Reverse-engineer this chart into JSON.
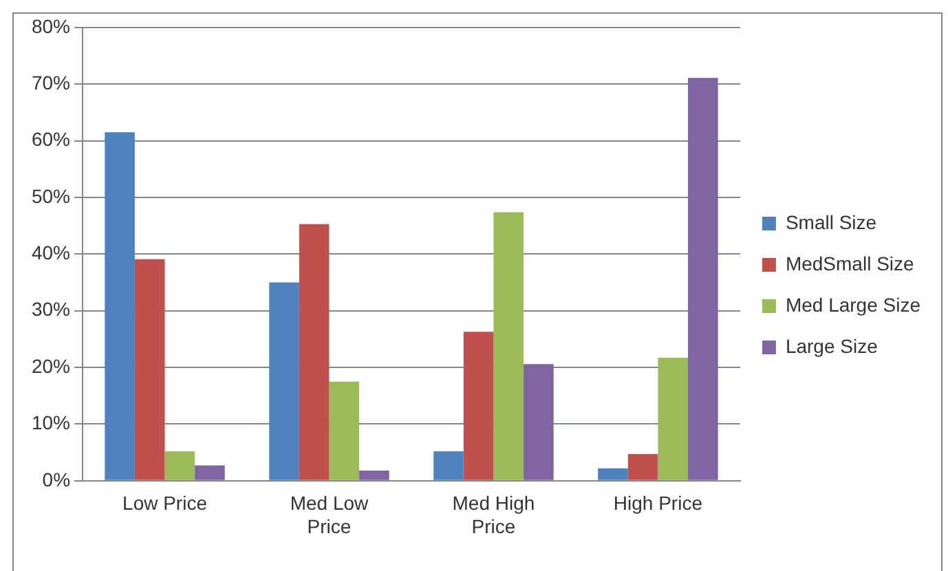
{
  "chart_data": {
    "type": "bar",
    "categories": [
      "Low Price",
      "Med Low Price",
      "Med High Price",
      "High Price"
    ],
    "series": [
      {
        "name": "Small Size",
        "color": "#4f81bd",
        "values": [
          61.5,
          35.0,
          5.2,
          2.2
        ]
      },
      {
        "name": "MedSmall Size",
        "color": "#c0504d",
        "values": [
          39.1,
          45.3,
          26.3,
          4.7
        ]
      },
      {
        "name": "Med Large Size",
        "color": "#9bbb59",
        "values": [
          5.2,
          17.5,
          47.4,
          21.7
        ]
      },
      {
        "name": "Large Size",
        "color": "#8064a2",
        "values": [
          2.7,
          1.8,
          20.6,
          71.1
        ]
      }
    ],
    "ylim": [
      0,
      80
    ],
    "yticks": [
      {
        "value": 0,
        "label": "0%"
      },
      {
        "value": 10,
        "label": "10%"
      },
      {
        "value": 20,
        "label": "20%"
      },
      {
        "value": 30,
        "label": "30%"
      },
      {
        "value": 40,
        "label": "40%"
      },
      {
        "value": 50,
        "label": "50%"
      },
      {
        "value": 60,
        "label": "60%"
      },
      {
        "value": 70,
        "label": "70%"
      },
      {
        "value": 80,
        "label": "80%"
      }
    ],
    "grid": "y",
    "legend": "right"
  }
}
